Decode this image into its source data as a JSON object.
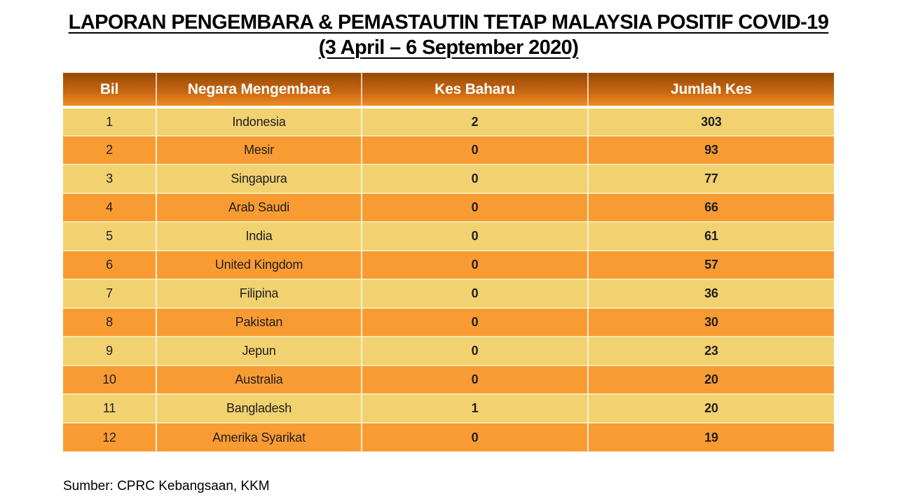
{
  "title": {
    "line1": "LAPORAN PENGEMBARA & PEMASTAUTIN TETAP MALAYSIA POSITIF COVID-19",
    "line2": "(3 April – 6 September 2020)"
  },
  "table": {
    "headers": [
      "Bil",
      "Negara Mengembara",
      "Kes Baharu",
      "Jumlah Kes"
    ],
    "column_keys": [
      "bil",
      "negara",
      "kes_baharu",
      "jumlah_kes"
    ],
    "rows": [
      {
        "bil": "1",
        "negara": "Indonesia",
        "kes_baharu": "2",
        "jumlah_kes": "303"
      },
      {
        "bil": "2",
        "negara": "Mesir",
        "kes_baharu": "0",
        "jumlah_kes": "93"
      },
      {
        "bil": "3",
        "negara": "Singapura",
        "kes_baharu": "0",
        "jumlah_kes": "77"
      },
      {
        "bil": "4",
        "negara": "Arab Saudi",
        "kes_baharu": "0",
        "jumlah_kes": "66"
      },
      {
        "bil": "5",
        "negara": "India",
        "kes_baharu": "0",
        "jumlah_kes": "61"
      },
      {
        "bil": "6",
        "negara": "United Kingdom",
        "kes_baharu": "0",
        "jumlah_kes": "57"
      },
      {
        "bil": "7",
        "negara": "Filipina",
        "kes_baharu": "0",
        "jumlah_kes": "36"
      },
      {
        "bil": "8",
        "negara": "Pakistan",
        "kes_baharu": "0",
        "jumlah_kes": "30"
      },
      {
        "bil": "9",
        "negara": "Jepun",
        "kes_baharu": "0",
        "jumlah_kes": "23"
      },
      {
        "bil": "10",
        "negara": "Australia",
        "kes_baharu": "0",
        "jumlah_kes": "20"
      },
      {
        "bil": "11",
        "negara": "Bangladesh",
        "kes_baharu": "1",
        "jumlah_kes": "20"
      },
      {
        "bil": "12",
        "negara": "Amerika Syarikat",
        "kes_baharu": "0",
        "jumlah_kes": "19"
      }
    ]
  },
  "footer": {
    "source": "Sumber: CPRC Kebangsaan, KKM"
  },
  "colors": {
    "background": "#FFFFFF",
    "title_text": "#000000",
    "header_gradient_top": "#964907",
    "header_gradient_mid": "#C66511",
    "header_gradient_bottom": "#EF8D24",
    "header_text": "#FFFFFF",
    "header_gap": "#FFFFFF",
    "row_light": "#F2D170",
    "row_orange": "#F99B33",
    "separator": "#F7E9AC",
    "v_separator": "#FBF2CC",
    "body_text": "#1F1F1F"
  }
}
